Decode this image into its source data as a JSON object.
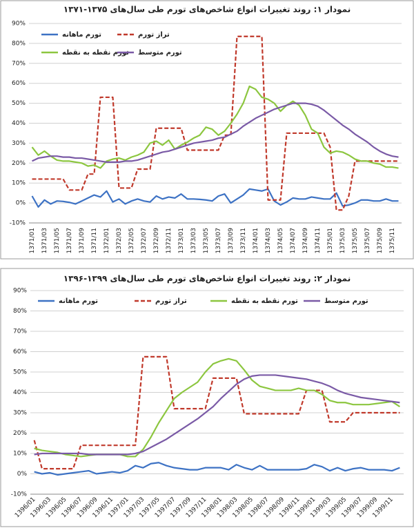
{
  "chart_data": [
    {
      "type": "line",
      "title": "نمودار ۱: روند تغییرات انواع شاخص‌های تورم طی سال‌های ۱۳۷۵-۱۳۷۱",
      "categories": [
        "1371/01",
        null,
        "1371/03",
        null,
        "1371/05",
        null,
        "1371/07",
        null,
        "1371/09",
        null,
        "1371/11",
        null,
        "1372/01",
        null,
        "1372/03",
        null,
        "1372/05",
        null,
        "1372/07",
        null,
        "1372/09",
        null,
        "1372/11",
        null,
        "1373/01",
        null,
        "1373/03",
        null,
        "1373/05",
        null,
        "1373/07",
        null,
        "1373/09",
        null,
        "1373/11",
        null,
        "1374/01",
        null,
        "1374/03",
        null,
        "1374/05",
        null,
        "1374/07",
        null,
        "1374/09",
        null,
        "1374/11",
        null,
        "1375/01",
        null,
        "1375/03",
        null,
        "1375/05",
        null,
        "1375/07",
        null,
        "1375/09",
        null,
        "1375/11",
        null
      ],
      "series": [
        {
          "name": "تورم ماهانه",
          "color": "#3d72c4",
          "line_style": "solid",
          "values": [
            3.5,
            -2,
            1.5,
            -0.5,
            1,
            0.8,
            0.3,
            -0.5,
            1,
            2.5,
            4,
            3,
            6,
            0.5,
            2,
            -0.5,
            1,
            2,
            1,
            0.5,
            3.5,
            2,
            3,
            2.5,
            4.5,
            2,
            2,
            1.8,
            1.5,
            1,
            3.5,
            4.5,
            0,
            2,
            4,
            7,
            6.5,
            6,
            7,
            1,
            -1,
            0.5,
            2.5,
            2,
            2,
            3,
            2.5,
            2,
            2,
            5,
            -1.5,
            -1,
            0,
            1.5,
            1.5,
            1,
            1,
            2,
            1,
            1
          ]
        },
        {
          "name": "تراز تورم",
          "color": "#c0392b",
          "line_style": "dashed",
          "values": [
            12,
            12,
            12,
            12,
            12,
            12,
            6.5,
            6.5,
            6.5,
            14.5,
            14.5,
            53,
            53,
            53,
            7.5,
            7.5,
            7.5,
            17,
            17,
            17,
            37.5,
            37.5,
            37.5,
            37.5,
            37.5,
            26.5,
            26.5,
            26.5,
            26.5,
            26.5,
            26.5,
            34,
            34,
            83.5,
            83.5,
            83.5,
            83.5,
            83.5,
            1.5,
            1.5,
            1.5,
            35,
            35,
            35,
            35,
            35,
            35,
            35,
            28,
            -3.5,
            -3.5,
            3.5,
            21,
            21,
            21,
            21,
            21,
            21,
            21,
            21
          ]
        },
        {
          "name": "تورم نقطه به نقطه",
          "color": "#8cc63f",
          "line_style": "solid",
          "values": [
            28,
            24,
            26,
            23.5,
            21.5,
            21,
            21,
            20.5,
            20,
            18.5,
            19,
            17.5,
            21,
            22,
            22.5,
            21.5,
            23,
            24,
            25.5,
            30,
            31,
            29,
            31.5,
            27,
            29,
            30.5,
            32.5,
            34,
            38,
            37,
            34,
            36,
            40,
            44.5,
            50,
            58.5,
            57,
            53,
            52,
            50,
            46,
            49,
            51,
            49,
            44,
            37,
            35,
            28,
            25,
            26,
            25.5,
            24,
            22,
            21,
            21,
            20,
            19.5,
            18,
            18,
            17.5
          ]
        },
        {
          "name": "تورم متوسط",
          "color": "#7a5aa6",
          "line_style": "solid",
          "values": [
            21,
            22.5,
            23,
            23.5,
            23.5,
            23,
            23,
            22.5,
            22.5,
            22,
            21.5,
            21,
            20.5,
            20.5,
            20.5,
            21,
            21,
            21.5,
            22.5,
            23.5,
            24.5,
            25.5,
            26,
            27,
            28,
            29,
            30,
            30.5,
            31,
            31.5,
            32.5,
            33,
            34.5,
            36,
            38.5,
            40.5,
            42.5,
            44,
            45.5,
            47,
            48,
            49,
            50,
            50,
            50,
            49.5,
            48.5,
            46.5,
            44,
            41.5,
            39,
            37,
            34.5,
            32.5,
            30.5,
            28,
            26,
            24.5,
            23.5,
            23
          ]
        }
      ],
      "ylim": [
        -10,
        90
      ],
      "yticks": [
        {
          "value": -10,
          "label": "-10%"
        },
        {
          "value": 0,
          "label": "0%"
        },
        {
          "value": 10,
          "label": "10%"
        },
        {
          "value": 20,
          "label": "20%"
        },
        {
          "value": 30,
          "label": "30%"
        },
        {
          "value": 40,
          "label": "40%"
        },
        {
          "value": 50,
          "label": "50%"
        },
        {
          "value": 60,
          "label": "60%"
        },
        {
          "value": 70,
          "label": "70%"
        },
        {
          "value": 80,
          "label": "80%"
        },
        {
          "value": 90,
          "label": "90%"
        }
      ],
      "grid": true,
      "legend": "top"
    },
    {
      "type": "line",
      "title": "نمودار ۲: روند تغییرات انواع شاخص‌های تورم طی سال‌های ۱۳۹۹-۱۳۹۶",
      "categories": [
        "1396/01",
        null,
        "1396/03",
        null,
        "1396/05",
        null,
        "1396/07",
        null,
        "1396/09",
        null,
        "1396/11",
        null,
        "1397/01",
        null,
        "1397/03",
        null,
        "1397/05",
        null,
        "1397/07",
        null,
        "1397/09",
        null,
        "1397/11",
        null,
        "1398/01",
        null,
        "1398/03",
        null,
        "1398/05",
        null,
        "1398/07",
        null,
        "1398/09",
        null,
        "1398/11",
        null,
        "1399/01",
        null,
        "1399/03",
        null,
        "1399/05",
        null,
        "1399/07",
        null,
        "1399/09",
        null,
        "1399/11",
        null
      ],
      "series": [
        {
          "name": "تورم ماهانه",
          "color": "#3d72c4",
          "line_style": "solid",
          "values": [
            1,
            0,
            0.5,
            -0.5,
            0,
            0.5,
            1,
            1.5,
            0,
            0.5,
            1,
            0.5,
            1.5,
            4,
            3,
            5,
            5.5,
            4,
            3,
            2.5,
            2,
            2,
            3,
            3,
            3,
            2,
            4.5,
            3,
            2,
            4,
            2,
            2,
            2,
            2,
            2,
            2.5,
            4.5,
            3.5,
            1.5,
            3,
            1.5,
            2.5,
            3,
            2,
            2,
            2,
            1.5,
            3
          ]
        },
        {
          "name": "تراز تورم",
          "color": "#c0392b",
          "line_style": "dashed",
          "values": [
            16.5,
            2.5,
            2.5,
            2.5,
            2.5,
            2.5,
            14,
            14,
            14,
            14,
            14,
            14,
            14,
            14,
            57.5,
            57.5,
            57.5,
            57.5,
            32,
            32,
            32,
            32,
            32,
            47,
            47,
            47,
            47,
            29.5,
            29.5,
            29.5,
            29.5,
            29.5,
            29.5,
            29.5,
            29.5,
            41,
            41,
            41,
            25.5,
            25.5,
            25.5,
            30,
            30,
            30,
            30,
            30,
            30,
            30
          ]
        },
        {
          "name": "تورم نقطه به نقطه",
          "color": "#8cc63f",
          "line_style": "solid",
          "values": [
            12.5,
            11.5,
            11,
            10.5,
            9.5,
            9,
            8.5,
            9,
            9.5,
            9.5,
            9.5,
            9.5,
            8.5,
            8.5,
            12,
            18,
            25,
            31,
            37,
            40,
            42.5,
            45,
            50,
            54,
            55.5,
            56.5,
            55.5,
            51,
            46,
            43,
            42,
            41,
            41,
            41,
            42,
            41,
            41,
            39,
            36,
            35,
            35,
            34,
            34,
            34,
            34.5,
            35,
            35.5,
            33
          ]
        },
        {
          "name": "تورم متوسط",
          "color": "#7a5aa6",
          "line_style": "solid",
          "values": [
            9.5,
            10,
            10,
            10,
            10,
            10,
            10,
            9.5,
            9.5,
            9.5,
            9.5,
            9.5,
            9.5,
            10,
            11,
            13,
            15,
            17,
            19.5,
            22,
            24.5,
            27,
            30,
            33,
            37,
            40.5,
            44,
            46.5,
            48,
            48.5,
            48.5,
            48.5,
            48,
            47.5,
            47,
            46.5,
            45.5,
            44.5,
            43,
            41,
            39.5,
            38.5,
            37.5,
            37,
            36.5,
            36,
            35.5,
            35
          ]
        }
      ],
      "ylim": [
        -10,
        90
      ],
      "yticks": [
        {
          "value": -10,
          "label": "-10%"
        },
        {
          "value": 0,
          "label": "0%"
        },
        {
          "value": 10,
          "label": "10%"
        },
        {
          "value": 20,
          "label": "20%"
        },
        {
          "value": 30,
          "label": "30%"
        },
        {
          "value": 40,
          "label": "40%"
        },
        {
          "value": 50,
          "label": "50%"
        },
        {
          "value": 60,
          "label": "60%"
        },
        {
          "value": 70,
          "label": "70%"
        },
        {
          "value": 80,
          "label": "80%"
        },
        {
          "value": 90,
          "label": "90%"
        }
      ],
      "grid": true,
      "legend": "top"
    }
  ]
}
